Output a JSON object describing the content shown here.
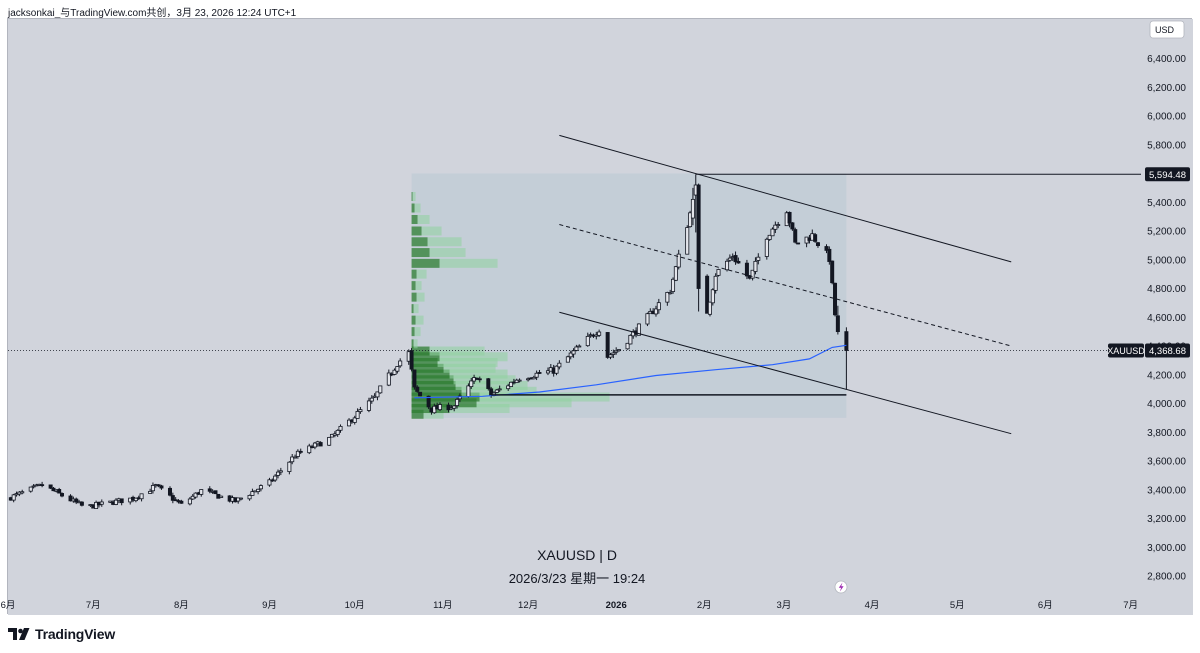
{
  "header": {
    "text": "jacksonkai_与TradingView.com共创，3月 23, 2026 12:24 UTC+1"
  },
  "footer": {
    "brand": "TradingView",
    "logo_icon": "tradingview-logo-icon"
  },
  "colors": {
    "background": "#d1d4dc",
    "up": "#e4e6ec",
    "down": "#131722",
    "wick": "#131722",
    "ma": "#2962ff",
    "vp_up": "#8fd19e",
    "vp_down": "#2e7d32",
    "vp_box": "#b9c8d4",
    "label_bg": "#131722"
  },
  "chart_data": {
    "type": "candlestick",
    "symbol": "XAUUSD",
    "interval": "D",
    "watermark": "XAUUSD | D",
    "timestamp": "2026/3/23 星期一 19:24",
    "currency": "USD",
    "x_tick_labels": [
      "6月",
      "7月",
      "8月",
      "9月",
      "10月",
      "11月",
      "12月",
      "2026",
      "2月",
      "3月",
      "4月",
      "5月",
      "6月",
      "7月"
    ],
    "y_ticks": [
      2800,
      3000,
      3200,
      3400,
      3600,
      3800,
      4000,
      4200,
      4400,
      4600,
      4800,
      5000,
      5200,
      5400,
      5600,
      5800,
      6000,
      6200,
      6400
    ],
    "y_tick_labels": [
      "2,800.00",
      "3,000.00",
      "3,200.00",
      "3,400.00",
      "3,600.00",
      "3,800.00",
      "4,000.00",
      "4,200.00",
      "4,400.00",
      "4,600.00",
      "4,800.00",
      "5,000.00",
      "5,200.00",
      "5,400.00",
      "5,600.00",
      "5,800.00",
      "6,000.00",
      "6,200.00",
      "6,400.00"
    ],
    "ylim": [
      2700,
      6650
    ],
    "price_labels": [
      {
        "name": "high",
        "value": 5594.48,
        "text": "5,594.48"
      },
      {
        "name": "last",
        "symbol": "XAUUSD",
        "value": 4368.68,
        "text": "4,368.68"
      }
    ],
    "anchors": [
      {
        "d": "2025-06-01",
        "c": 3340
      },
      {
        "d": "2025-06-13",
        "c": 3432
      },
      {
        "d": "2025-06-28",
        "c": 3278
      },
      {
        "d": "2025-07-15",
        "c": 3340
      },
      {
        "d": "2025-07-23",
        "c": 3425
      },
      {
        "d": "2025-08-01",
        "c": 3295
      },
      {
        "d": "2025-08-08",
        "c": 3395
      },
      {
        "d": "2025-08-20",
        "c": 3320
      },
      {
        "d": "2025-09-01",
        "c": 3450
      },
      {
        "d": "2025-09-10",
        "c": 3640
      },
      {
        "d": "2025-09-23",
        "c": 3765
      },
      {
        "d": "2025-10-08",
        "c": 4040
      },
      {
        "d": "2025-10-16",
        "c": 4280
      },
      {
        "d": "2025-10-20",
        "c": 4350
      },
      {
        "d": "2025-10-22",
        "c": 4100
      },
      {
        "d": "2025-10-28",
        "c": 3960
      },
      {
        "d": "2025-11-05",
        "c": 3985
      },
      {
        "d": "2025-11-13",
        "c": 4190
      },
      {
        "d": "2025-11-18",
        "c": 4060
      },
      {
        "d": "2025-11-28",
        "c": 4180
      },
      {
        "d": "2025-12-10",
        "c": 4230
      },
      {
        "d": "2025-12-26",
        "c": 4520
      },
      {
        "d": "2025-12-29",
        "c": 4330
      },
      {
        "d": "2026-01-02",
        "c": 4380
      },
      {
        "d": "2026-01-10",
        "c": 4550
      },
      {
        "d": "2026-01-20",
        "c": 4790
      },
      {
        "d": "2026-01-28",
        "c": 5400
      },
      {
        "d": "2026-01-29",
        "c": 5500
      },
      {
        "d": "2026-01-30",
        "c": 4860
      },
      {
        "d": "2026-02-02",
        "c": 4640
      },
      {
        "d": "2026-02-05",
        "c": 4900
      },
      {
        "d": "2026-02-11",
        "c": 5030
      },
      {
        "d": "2026-02-17",
        "c": 4860
      },
      {
        "d": "2026-02-23",
        "c": 5170
      },
      {
        "d": "2026-03-02",
        "c": 5350
      },
      {
        "d": "2026-03-05",
        "c": 5110
      },
      {
        "d": "2026-03-11",
        "c": 5170
      },
      {
        "d": "2026-03-17",
        "c": 5010
      },
      {
        "d": "2026-03-19",
        "c": 4620
      },
      {
        "d": "2026-03-23",
        "c": 4368.68
      }
    ],
    "big_candles": [
      {
        "d": "2026-01-28",
        "o": 5290,
        "h": 5500,
        "l": 5240,
        "c": 5420
      },
      {
        "d": "2026-01-29",
        "o": 5450,
        "h": 5594.48,
        "l": 5190,
        "c": 5520
      },
      {
        "d": "2026-01-30",
        "o": 5520,
        "h": 5530,
        "l": 4640,
        "c": 4800
      },
      {
        "d": "2026-03-20",
        "o": 4610,
        "h": 4680,
        "l": 4480,
        "c": 4500
      },
      {
        "d": "2026-03-23",
        "o": 4500,
        "h": 4530,
        "l": 4100,
        "c": 4368.68
      }
    ],
    "moving_average": [
      {
        "d": "2025-10-22",
        "v": 4040
      },
      {
        "d": "2025-11-15",
        "v": 4050
      },
      {
        "d": "2025-12-05",
        "v": 4080
      },
      {
        "d": "2025-12-25",
        "v": 4130
      },
      {
        "d": "2026-01-15",
        "v": 4195
      },
      {
        "d": "2026-02-05",
        "v": 4235
      },
      {
        "d": "2026-02-25",
        "v": 4270
      },
      {
        "d": "2026-03-10",
        "v": 4310
      },
      {
        "d": "2026-03-18",
        "v": 4390
      },
      {
        "d": "2026-03-23",
        "v": 4405
      }
    ],
    "channel": {
      "upper": [
        {
          "d": "2025-12-12",
          "v": 5865
        },
        {
          "d": "2026-05-20",
          "v": 4985
        }
      ],
      "middle": [
        {
          "d": "2025-12-12",
          "v": 5245
        },
        {
          "d": "2026-05-20",
          "v": 4400
        }
      ],
      "lower": [
        {
          "d": "2025-12-12",
          "v": 4635
        },
        {
          "d": "2026-05-20",
          "v": 3790
        }
      ]
    },
    "horizontal_lines": [
      {
        "name": "high-line",
        "from": "2026-01-29",
        "to": "right-edge",
        "v": 5594.48
      },
      {
        "name": "support-line",
        "from": "2025-11-18",
        "to": "2026-03-23",
        "v": 4060
      }
    ],
    "volume_profile": {
      "from": "2025-10-21",
      "to": "2026-03-23",
      "price_range": [
        3900,
        5600
      ],
      "rows": [
        {
          "p": 3925,
          "up": 20,
          "down": 12
        },
        {
          "p": 3965,
          "up": 60,
          "down": 38
        },
        {
          "p": 4005,
          "up": 95,
          "down": 65
        },
        {
          "p": 4045,
          "up": 130,
          "down": 68
        },
        {
          "p": 4085,
          "up": 75,
          "down": 50
        },
        {
          "p": 4125,
          "up": 72,
          "down": 44
        },
        {
          "p": 4165,
          "up": 62,
          "down": 42
        },
        {
          "p": 4205,
          "up": 58,
          "down": 38
        },
        {
          "p": 4245,
          "up": 52,
          "down": 32
        },
        {
          "p": 4285,
          "up": 60,
          "down": 26
        },
        {
          "p": 4325,
          "up": 68,
          "down": 28
        },
        {
          "p": 4365,
          "up": 55,
          "down": 18
        },
        {
          "p": 4415,
          "up": 4,
          "down": 2
        },
        {
          "p": 4500,
          "up": 6,
          "down": 3
        },
        {
          "p": 4580,
          "up": 8,
          "down": 4
        },
        {
          "p": 4660,
          "up": 5,
          "down": 2
        },
        {
          "p": 4740,
          "up": 8,
          "down": 5
        },
        {
          "p": 4820,
          "up": 6,
          "down": 4
        },
        {
          "p": 4900,
          "up": 10,
          "down": 5
        },
        {
          "p": 4975,
          "up": 58,
          "down": 28
        },
        {
          "p": 5050,
          "up": 36,
          "down": 18
        },
        {
          "p": 5125,
          "up": 34,
          "down": 16
        },
        {
          "p": 5200,
          "up": 20,
          "down": 10
        },
        {
          "p": 5280,
          "up": 12,
          "down": 6
        },
        {
          "p": 5360,
          "up": 6,
          "down": 3
        },
        {
          "p": 5440,
          "up": 3,
          "down": 1
        }
      ]
    },
    "flash_icon": "lightning-icon"
  }
}
